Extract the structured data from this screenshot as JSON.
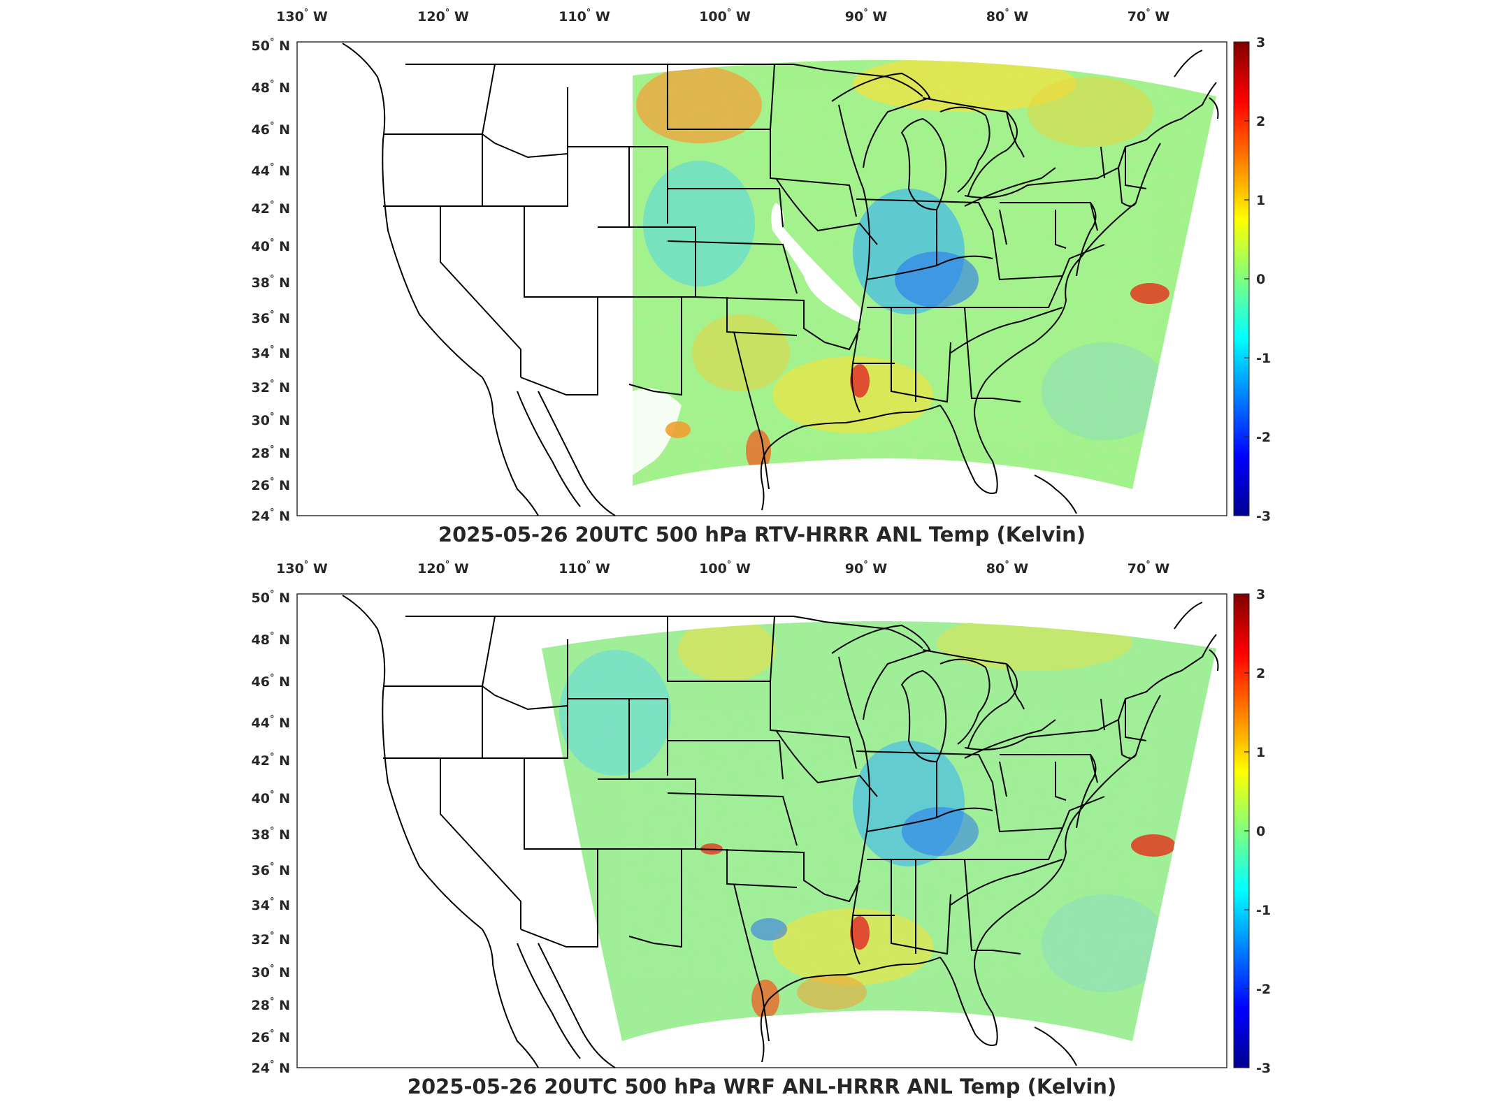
{
  "panels": [
    {
      "title": "2025-05-26 20UTC 500 hPa RTV-HRRR ANL Temp (Kelvin)",
      "field": "rtv"
    },
    {
      "title": "2025-05-26 20UTC 500 hPa WRF ANL-HRRR ANL Temp (Kelvin)",
      "field": "wrf"
    }
  ],
  "axes": {
    "lon_ticks": [
      "130",
      "120",
      "110",
      "100",
      "90",
      "80",
      "70"
    ],
    "lon_suffix": "W",
    "lat_ticks": [
      "50",
      "48",
      "46",
      "44",
      "42",
      "40",
      "38",
      "36",
      "34",
      "32",
      "30",
      "28",
      "26",
      "24"
    ],
    "lat_suffix": "N",
    "degree_symbol": "°",
    "lon_range": [
      -131,
      -65
    ],
    "lat_range": [
      24,
      50
    ]
  },
  "colorbar": {
    "colormap": "jet",
    "ticks": [
      "3",
      "2",
      "1",
      "0",
      "-1",
      "-2",
      "-3"
    ],
    "range": [
      -3,
      3
    ],
    "colors": [
      "#00008f",
      "#0000ff",
      "#00ffff",
      "#ffff00",
      "#ff0000",
      "#800000"
    ]
  }
}
